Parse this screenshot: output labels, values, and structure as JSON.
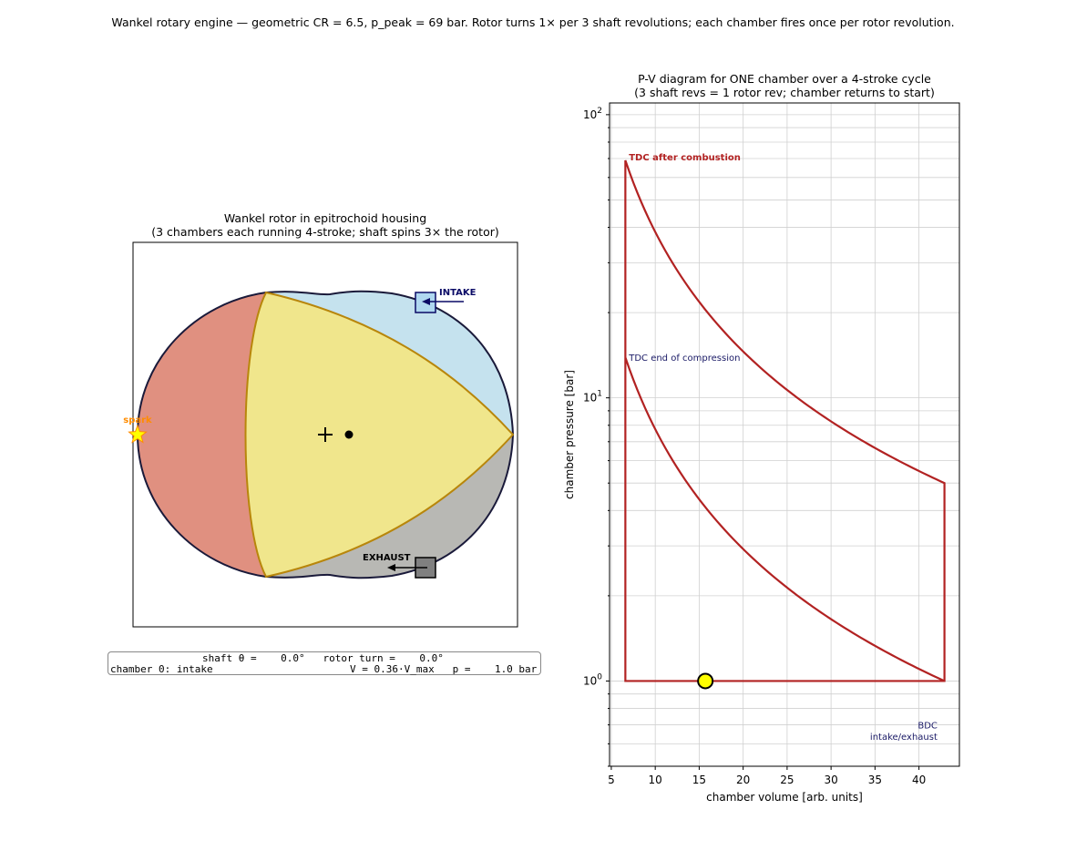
{
  "suptitle": "Wankel rotary engine — geometric CR = 6.5,  p_peak = 69 bar.  Rotor turns 1× per 3 shaft revolutions; each chamber fires once per rotor revolution.",
  "left_panel": {
    "title_line1": "Wankel rotor in epitrochoid housing",
    "title_line2": "(3 chambers each running 4-stroke; shaft spins 3× the rotor)",
    "labels": {
      "intake": "INTAKE",
      "exhaust": "EXHAUST",
      "spark": "spark"
    },
    "colors": {
      "chamber_red": "#e09080",
      "chamber_blue": "#c5e2ee",
      "chamber_gray": "#b8b8b4",
      "rotor": "#f0e68c",
      "rotor_edge": "#b8860b",
      "housing_edge": "#1a1a3a",
      "intake_port": "#b0d8f0",
      "exhaust_port": "#808080",
      "spark": "#ffff00"
    },
    "icons": [
      "center-cross-icon",
      "eccentric-dot-icon",
      "spark-star-icon",
      "intake-arrow-icon",
      "exhaust-arrow-icon"
    ]
  },
  "status": {
    "line1": "shaft θ =    0.0°   rotor turn =    0.0°",
    "line2_left": "chamber 0: intake",
    "line2_right": "V = 0.36·V_max   p =    1.0 bar"
  },
  "chart_data": {
    "type": "line",
    "title_line1": "P-V diagram for ONE chamber over a 4-stroke cycle",
    "title_line2": "(3 shaft revs = 1 rotor rev; chamber returns to start)",
    "xlabel": "chamber volume [arb. units]",
    "ylabel": "chamber pressure [bar]",
    "xlim": [
      4.8,
      44.6
    ],
    "ylim": [
      0.5,
      110
    ],
    "yscale": "log",
    "grid": true,
    "x_ticks": [
      5,
      10,
      15,
      20,
      25,
      30,
      35,
      40
    ],
    "y_ticks": [
      1,
      10,
      100
    ],
    "y_tick_labels": [
      {
        "base": "10",
        "exp": "0"
      },
      {
        "base": "10",
        "exp": "1"
      },
      {
        "base": "10",
        "exp": "2"
      }
    ],
    "v_min": 6.6,
    "v_max": 42.9,
    "p_low": 1.0,
    "p_compression_end": 13.9,
    "p_peak": 69,
    "p_expansion_end": 5.0,
    "line_color": "#b22222",
    "current_point": {
      "x": 15.7,
      "y": 1.0,
      "color": "#ffff00"
    },
    "annotations": [
      {
        "text": "TDC after combustion",
        "x": 7.0,
        "y": 69,
        "color": "#b22222",
        "bold": true
      },
      {
        "text": "TDC end of compression",
        "x": 7.0,
        "y": 13.5,
        "color": "#1a1a66",
        "bold": false
      },
      {
        "text": "BDC",
        "x": 42.1,
        "y": 0.68,
        "color": "#1a1a66",
        "bold": false
      },
      {
        "text": "intake/exhaust",
        "x": 42.1,
        "y": 0.62,
        "color": "#1a1a66",
        "bold": false
      }
    ]
  }
}
